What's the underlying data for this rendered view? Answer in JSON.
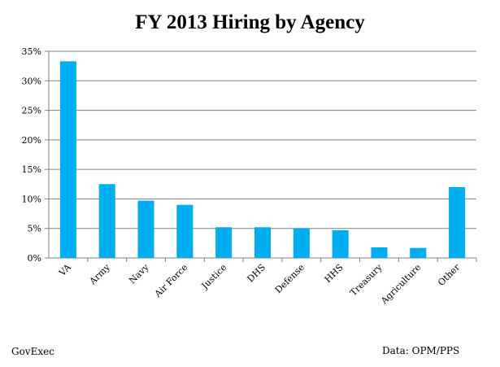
{
  "chart_data": {
    "type": "bar",
    "title": "FY 2013 Hiring by Agency",
    "xlabel": "",
    "ylabel": "",
    "ylim": [
      0,
      35
    ],
    "y_ticks": [
      "0%",
      "5%",
      "10%",
      "15%",
      "20%",
      "25%",
      "30%",
      "35%"
    ],
    "categories": [
      "VA",
      "Army",
      "Navy",
      "Air Force",
      "Justice",
      "DHS",
      "Defense",
      "HHS",
      "Treasury",
      "Agriculture",
      "Other"
    ],
    "values": [
      33.3,
      12.5,
      9.7,
      9.0,
      5.2,
      5.2,
      5.0,
      4.7,
      1.8,
      1.7,
      12.0
    ],
    "bar_color": "#00aeef",
    "grid": true,
    "legend": "none"
  },
  "footer": {
    "left": "GovExec",
    "right": "Data: OPM/PPS"
  }
}
